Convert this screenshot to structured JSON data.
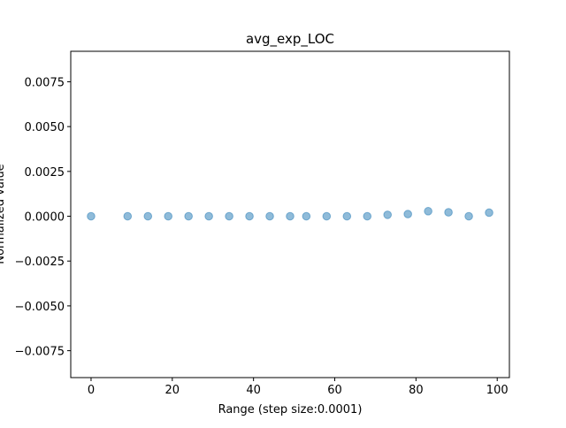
{
  "chart_data": {
    "type": "scatter",
    "title": "avg_exp_LOC",
    "xlabel": "Range (step size:0.0001)",
    "ylabel": "Normalized value",
    "xlim": [
      -5,
      103
    ],
    "ylim": [
      -0.009,
      0.0092
    ],
    "x_ticks": [
      0,
      20,
      40,
      60,
      80,
      100
    ],
    "y_ticks": [
      -0.0075,
      -0.005,
      -0.0025,
      0.0,
      0.0025,
      0.005,
      0.0075
    ],
    "x_tick_labels": [
      "0",
      "20",
      "40",
      "60",
      "80",
      "100"
    ],
    "y_tick_labels": [
      "−0.0075",
      "−0.0050",
      "−0.0025",
      "0.0000",
      "0.0025",
      "0.0050",
      "0.0075"
    ],
    "grid": false,
    "marker_color": "#1f77b4",
    "marker_alpha": 0.5,
    "x": [
      0,
      9,
      14,
      19,
      24,
      29,
      34,
      39,
      44,
      49,
      53,
      58,
      63,
      68,
      73,
      78,
      83,
      88,
      93,
      98
    ],
    "y": [
      0,
      0,
      0,
      0,
      0,
      0,
      0,
      0,
      0,
      0,
      0,
      0,
      0,
      0,
      8e-05,
      0.00012,
      0.00028,
      0.00022,
      0,
      0.0002
    ]
  }
}
